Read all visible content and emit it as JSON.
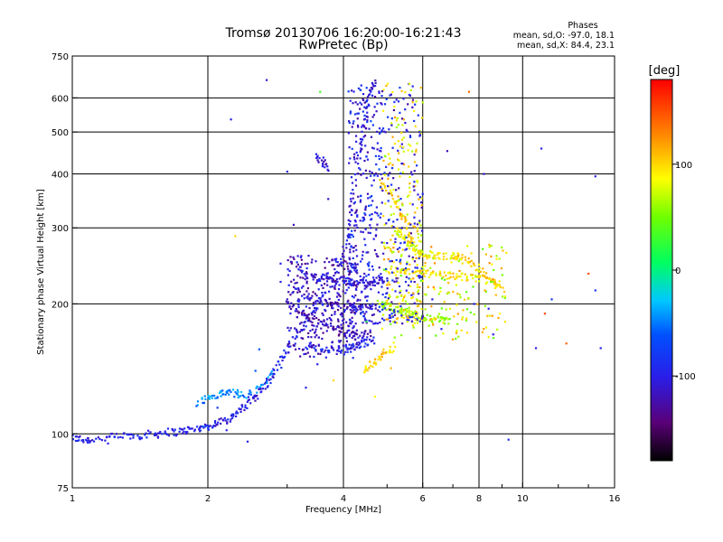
{
  "chart_data": {
    "type": "scatter",
    "title": "Tromsø 20130706 16:20:00-16:21:43",
    "subtitle": "RwPretec (Bp)",
    "stats": {
      "heading": "Phases",
      "line_o": "mean, sd,O: -97.0, 18.1",
      "line_x": "mean, sd,X:  84.4, 23.1"
    },
    "xlabel": "Frequency [MHz]",
    "ylabel": "Stationary phase Virtual Height [km]",
    "x_scale": "log",
    "y_scale": "log",
    "xlim": [
      1,
      16
    ],
    "ylim": [
      75,
      750
    ],
    "x_ticks": [
      1,
      2,
      4,
      6,
      8,
      10,
      16
    ],
    "x_minor_ticks": [
      3,
      5,
      7,
      9,
      12,
      14
    ],
    "y_ticks": [
      75,
      100,
      200,
      300,
      400,
      500,
      600,
      750
    ],
    "grid": true,
    "colorbar": {
      "label": "[deg]",
      "range": [
        -180,
        180
      ],
      "ticks": [
        -100,
        0,
        100
      ]
    },
    "traces": [
      {
        "x": [
          1.0,
          1.05,
          1.1,
          1.2,
          1.3,
          1.4,
          1.5,
          1.6,
          1.7,
          1.8,
          1.9,
          2.0,
          2.1,
          2.2,
          2.3,
          2.4,
          2.5,
          2.6,
          2.7,
          2.8,
          2.9,
          3.0,
          3.2,
          3.4,
          3.6,
          3.8,
          4.0
        ],
        "y": [
          98,
          97,
          97,
          98,
          99,
          99,
          100,
          101,
          101,
          102,
          103,
          104,
          106,
          108,
          111,
          115,
          120,
          125,
          131,
          138,
          147,
          157,
          172,
          190,
          208,
          230,
          255
        ],
        "phase": -100
      },
      {
        "x": [
          1.9,
          2.0,
          2.1,
          2.2,
          2.3,
          2.4,
          2.6,
          2.8
        ],
        "y": [
          118,
          121,
          123,
          125,
          124,
          122,
          128,
          140
        ],
        "phase": -45
      },
      {
        "x": [
          3.0,
          3.2,
          3.4,
          3.6,
          3.8,
          4.0,
          4.2,
          4.4,
          4.6
        ],
        "y": [
          200,
          192,
          185,
          180,
          176,
          172,
          170,
          170,
          171
        ],
        "phase": -120
      },
      {
        "x": [
          3.1,
          3.3,
          3.5,
          3.7,
          3.9,
          4.1,
          4.3,
          4.5,
          4.7
        ],
        "y": [
          218,
          210,
          204,
          200,
          197,
          195,
          194,
          195,
          197
        ],
        "phase": -110
      },
      {
        "x": [
          3.3,
          3.5,
          3.7,
          3.9,
          4.1,
          4.3,
          4.5,
          4.7
        ],
        "y": [
          160,
          158,
          157,
          157,
          158,
          160,
          163,
          166
        ],
        "phase": -95
      },
      {
        "x": [
          3.2,
          3.4,
          3.6,
          3.8,
          4.0,
          4.2,
          4.4,
          4.6,
          4.8,
          5.0
        ],
        "y": [
          235,
          232,
          230,
          228,
          226,
          225,
          224,
          225,
          226,
          228
        ],
        "phase": -105
      },
      {
        "x": [
          4.0,
          4.1,
          4.2,
          4.3,
          4.4,
          4.5,
          4.6,
          4.7
        ],
        "y": [
          260,
          300,
          360,
          420,
          490,
          560,
          630,
          650
        ],
        "phase": -105
      },
      {
        "x": [
          3.5,
          3.6,
          3.7
        ],
        "y": [
          440,
          425,
          410
        ],
        "phase": -115
      },
      {
        "x": [
          4.8,
          5.0,
          5.2,
          5.4,
          5.6,
          5.8,
          6.0,
          6.3,
          6.6,
          6.9
        ],
        "y": [
          200,
          198,
          195,
          192,
          190,
          188,
          186,
          184,
          183,
          182
        ],
        "phase": 60
      },
      {
        "x": [
          5.0,
          5.3,
          5.6,
          6.0,
          6.4,
          6.8,
          7.2,
          7.6,
          8.0,
          8.5,
          9.0
        ],
        "y": [
          240,
          238,
          236,
          235,
          234,
          233,
          232,
          230,
          228,
          225,
          222
        ],
        "phase": 95
      },
      {
        "x": [
          4.8,
          5.0,
          5.2,
          5.4,
          5.6,
          5.8
        ],
        "y": [
          380,
          370,
          350,
          320,
          290,
          265
        ],
        "phase": 105
      },
      {
        "x": [
          5.2,
          5.4,
          5.6,
          5.8,
          6.0,
          6.2,
          6.5,
          6.9,
          7.3
        ],
        "y": [
          300,
          285,
          275,
          268,
          262,
          260,
          258,
          257,
          258
        ],
        "phase": 85
      },
      {
        "x": [
          7.0,
          7.4,
          7.8,
          8.2,
          8.6,
          9.0
        ],
        "y": [
          260,
          255,
          245,
          235,
          225,
          215
        ],
        "phase": 100
      },
      {
        "x": [
          4.4,
          4.6,
          4.8,
          5.0,
          5.2
        ],
        "y": [
          140,
          145,
          150,
          155,
          160
        ],
        "phase": 100
      }
    ],
    "scatter_points": [
      [
        2.25,
        535,
        -100
      ],
      [
        2.7,
        660,
        -110
      ],
      [
        3.0,
        405,
        -95
      ],
      [
        3.55,
        620,
        30
      ],
      [
        4.8,
        410,
        -60
      ],
      [
        5.6,
        610,
        -95
      ],
      [
        6.8,
        452,
        -120
      ],
      [
        7.6,
        620,
        140
      ],
      [
        8.2,
        400,
        -110
      ],
      [
        11.0,
        458,
        -100
      ],
      [
        14.5,
        395,
        -100
      ],
      [
        14.5,
        215,
        -85
      ],
      [
        14.0,
        235,
        150
      ],
      [
        2.3,
        287,
        100
      ],
      [
        2.6,
        157,
        -60
      ],
      [
        2.9,
        248,
        -100
      ],
      [
        3.1,
        305,
        -120
      ],
      [
        3.8,
        133,
        100
      ],
      [
        4.7,
        122,
        90
      ],
      [
        5.1,
        142,
        110
      ],
      [
        6.6,
        175,
        -100
      ],
      [
        7.2,
        168,
        60
      ],
      [
        7.5,
        185,
        100
      ],
      [
        8.6,
        170,
        -100
      ],
      [
        9.3,
        97,
        -90
      ],
      [
        10.7,
        158,
        -100
      ],
      [
        11.2,
        190,
        150
      ],
      [
        11.6,
        205,
        -80
      ],
      [
        12.5,
        162,
        140
      ],
      [
        14.9,
        158,
        -100
      ],
      [
        5.4,
        480,
        100
      ],
      [
        5.8,
        455,
        110
      ],
      [
        5.4,
        300,
        -110
      ],
      [
        5.7,
        340,
        -100
      ],
      [
        4.9,
        510,
        -80
      ],
      [
        5.2,
        470,
        95
      ],
      [
        6.3,
        205,
        -100
      ],
      [
        7.8,
        200,
        -100
      ],
      [
        8.4,
        195,
        -100
      ],
      [
        8.9,
        190,
        90
      ],
      [
        3.3,
        128,
        -95
      ],
      [
        3.5,
        145,
        -100
      ],
      [
        4.2,
        150,
        -90
      ],
      [
        4.5,
        182,
        20
      ],
      [
        5.9,
        230,
        -100
      ],
      [
        6.1,
        210,
        60
      ],
      [
        6.4,
        255,
        95
      ],
      [
        5.1,
        360,
        100
      ],
      [
        5.3,
        410,
        80
      ],
      [
        4.95,
        440,
        50
      ],
      [
        4.9,
        560,
        90
      ],
      [
        4.6,
        530,
        -60
      ],
      [
        4.3,
        580,
        -120
      ],
      [
        3.7,
        350,
        -110
      ],
      [
        3.9,
        245,
        -130
      ],
      [
        4.25,
        325,
        -115
      ],
      [
        4.6,
        300,
        -105
      ],
      [
        5.0,
        270,
        75
      ],
      [
        5.5,
        225,
        -90
      ],
      [
        6.9,
        195,
        80
      ],
      [
        1.95,
        104,
        -60
      ],
      [
        2.2,
        102,
        -100
      ],
      [
        1.2,
        95,
        -100
      ],
      [
        1.55,
        98,
        -100
      ],
      [
        1.8,
        101,
        -100
      ],
      [
        2.45,
        96,
        -100
      ],
      [
        2.1,
        115,
        -80
      ],
      [
        2.55,
        140,
        -60
      ],
      [
        3.0,
        205,
        -110
      ],
      [
        2.9,
        225,
        -100
      ]
    ]
  }
}
